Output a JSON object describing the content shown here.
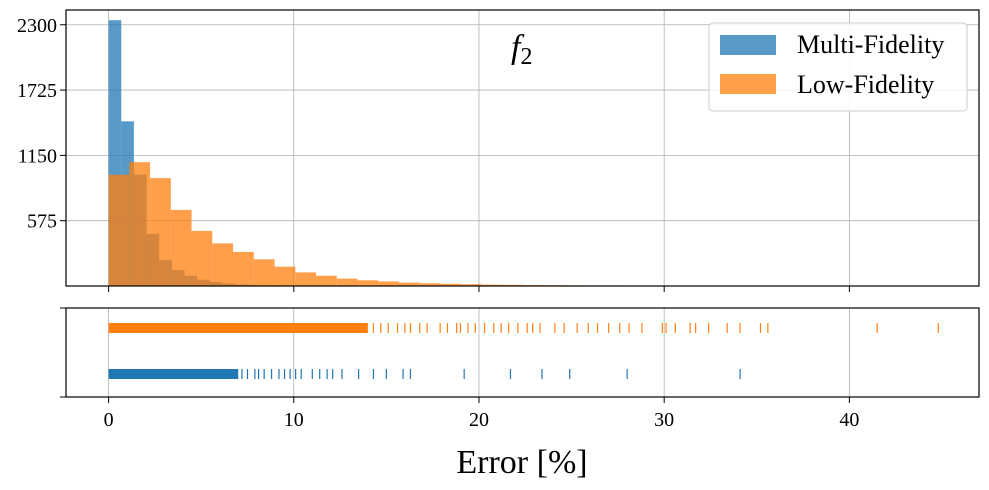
{
  "chart_data": {
    "type": "bar",
    "title": "",
    "annotation": {
      "main": "f",
      "sub": "2"
    },
    "xlabel": "Error [%]",
    "ylabel": "",
    "xlim": [
      -2.3,
      47
    ],
    "ylim": [
      0,
      2430
    ],
    "grid": true,
    "legend_position": "top-right",
    "x_ticks": [
      0,
      10,
      20,
      30,
      40
    ],
    "y_ticks": [
      575,
      1150,
      1725,
      2300
    ],
    "colors": {
      "multi": "#1f77b4",
      "low": "#ff7f0e"
    },
    "series": [
      {
        "name": "Multi-Fidelity",
        "bin_start": 0,
        "bin_width": 0.683,
        "values": [
          2340,
          1450,
          980,
          460,
          230,
          140,
          90,
          55,
          35,
          22,
          14,
          9,
          6,
          4,
          3,
          2,
          1,
          1
        ]
      },
      {
        "name": "Low-Fidelity",
        "bin_start": 0,
        "bin_width": 1.12,
        "values": [
          980,
          1090,
          950,
          670,
          485,
          375,
          300,
          235,
          170,
          120,
          90,
          65,
          50,
          40,
          30,
          24,
          20,
          16,
          12,
          10,
          8,
          7,
          6,
          5,
          5,
          4,
          4,
          3,
          3,
          3,
          2,
          2
        ]
      }
    ],
    "rug": [
      {
        "name": "Low-Fidelity",
        "dense_until": 14,
        "outliers": [
          14.3,
          14.7,
          15.1,
          15.6,
          16.0,
          16.3,
          16.8,
          17.2,
          17.9,
          18.3,
          18.8,
          19.0,
          19.4,
          19.8,
          20.3,
          20.8,
          21.2,
          21.6,
          22.1,
          22.6,
          22.9,
          23.3,
          24.1,
          24.6,
          25.3,
          25.9,
          26.4,
          27.0,
          27.6,
          28.1,
          28.8,
          29.9,
          30.1,
          30.6,
          31.4,
          31.7,
          32.4,
          33.4,
          34.1,
          35.2,
          35.6,
          41.5,
          44.8
        ]
      },
      {
        "name": "Multi-Fidelity",
        "dense_until": 7,
        "outliers": [
          7.2,
          7.5,
          7.9,
          8.1,
          8.4,
          8.8,
          9.2,
          9.5,
          9.8,
          10.1,
          10.4,
          11.0,
          11.4,
          11.8,
          12.1,
          12.6,
          13.5,
          14.3,
          15.0,
          15.9,
          16.3,
          19.2,
          21.7,
          23.4,
          24.9,
          28.0,
          34.1
        ]
      }
    ]
  }
}
